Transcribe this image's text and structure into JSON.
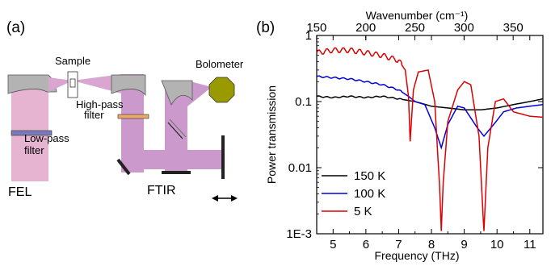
{
  "panel_a": {
    "label": "(a)",
    "labels": {
      "sample": "Sample",
      "bolometer": "Bolometer",
      "high_pass": [
        "High-pass",
        "filter"
      ],
      "low_pass": [
        "Low-pass",
        "filter"
      ],
      "fel": "FEL",
      "ftir": "FTIR"
    },
    "colors": {
      "beam": "#cc99cc",
      "fel_beam": "#e6b3d1",
      "mirror": "#b3b3b3",
      "bolometer": "#999900",
      "high_pass": "#e8a868",
      "low_pass": "#7a7ab8"
    }
  },
  "panel_b": {
    "label": "(b)"
  },
  "chart_data": {
    "type": "line",
    "xlabel": "Frequency (THz)",
    "ylabel": "Power transmission",
    "top_axis_label": "Wavenumber (cm⁻¹)",
    "xlim": [
      4.5,
      11.4
    ],
    "ylim": [
      0.001,
      1
    ],
    "yscale": "log",
    "grid": false,
    "legend_position": "lower-left",
    "x_ticks": [
      "5",
      "6",
      "7",
      "8",
      "9",
      "10",
      "11"
    ],
    "y_ticks": [
      "1E-3",
      "0.01",
      "0.1",
      "1"
    ],
    "top_ticks": [
      "150",
      "200",
      "250",
      "300",
      "350"
    ],
    "series": [
      {
        "name": "150 K",
        "color": "#000000",
        "points": [
          [
            4.5,
            0.12
          ],
          [
            5.0,
            0.115
          ],
          [
            5.5,
            0.12
          ],
          [
            6.0,
            0.115
          ],
          [
            6.5,
            0.12
          ],
          [
            7.0,
            0.11
          ],
          [
            7.5,
            0.1
          ],
          [
            8.0,
            0.085
          ],
          [
            8.5,
            0.08
          ],
          [
            9.0,
            0.075
          ],
          [
            9.5,
            0.075
          ],
          [
            10.0,
            0.08
          ],
          [
            10.5,
            0.09
          ],
          [
            11.0,
            0.1
          ],
          [
            11.4,
            0.11
          ]
        ]
      },
      {
        "name": "100 K",
        "color": "#0000dd",
        "points": [
          [
            4.5,
            0.24
          ],
          [
            5.0,
            0.23
          ],
          [
            5.5,
            0.22
          ],
          [
            6.0,
            0.2
          ],
          [
            6.5,
            0.18
          ],
          [
            7.0,
            0.15
          ],
          [
            7.3,
            0.12
          ],
          [
            7.5,
            0.1
          ],
          [
            7.8,
            0.09
          ],
          [
            8.1,
            0.04
          ],
          [
            8.3,
            0.02
          ],
          [
            8.5,
            0.045
          ],
          [
            8.8,
            0.085
          ],
          [
            9.0,
            0.08
          ],
          [
            9.4,
            0.04
          ],
          [
            9.6,
            0.03
          ],
          [
            9.9,
            0.045
          ],
          [
            10.2,
            0.07
          ],
          [
            10.6,
            0.08
          ],
          [
            11.0,
            0.085
          ],
          [
            11.4,
            0.09
          ]
        ]
      },
      {
        "name": "5 K",
        "color": "#dd0000",
        "points": [
          [
            4.5,
            0.55
          ],
          [
            5.0,
            0.6
          ],
          [
            5.5,
            0.6
          ],
          [
            6.0,
            0.55
          ],
          [
            6.5,
            0.5
          ],
          [
            7.0,
            0.42
          ],
          [
            7.2,
            0.3
          ],
          [
            7.3,
            0.12
          ],
          [
            7.35,
            0.025
          ],
          [
            7.45,
            0.15
          ],
          [
            7.6,
            0.28
          ],
          [
            7.9,
            0.3
          ],
          [
            8.1,
            0.1
          ],
          [
            8.25,
            0.005
          ],
          [
            8.3,
            0.0011
          ],
          [
            8.36,
            0.006
          ],
          [
            8.5,
            0.05
          ],
          [
            8.8,
            0.15
          ],
          [
            9.0,
            0.2
          ],
          [
            9.2,
            0.18
          ],
          [
            9.45,
            0.03
          ],
          [
            9.6,
            0.0011
          ],
          [
            9.72,
            0.02
          ],
          [
            9.95,
            0.1
          ],
          [
            10.2,
            0.11
          ],
          [
            10.5,
            0.07
          ],
          [
            11.0,
            0.06
          ],
          [
            11.4,
            0.058
          ]
        ]
      }
    ]
  }
}
